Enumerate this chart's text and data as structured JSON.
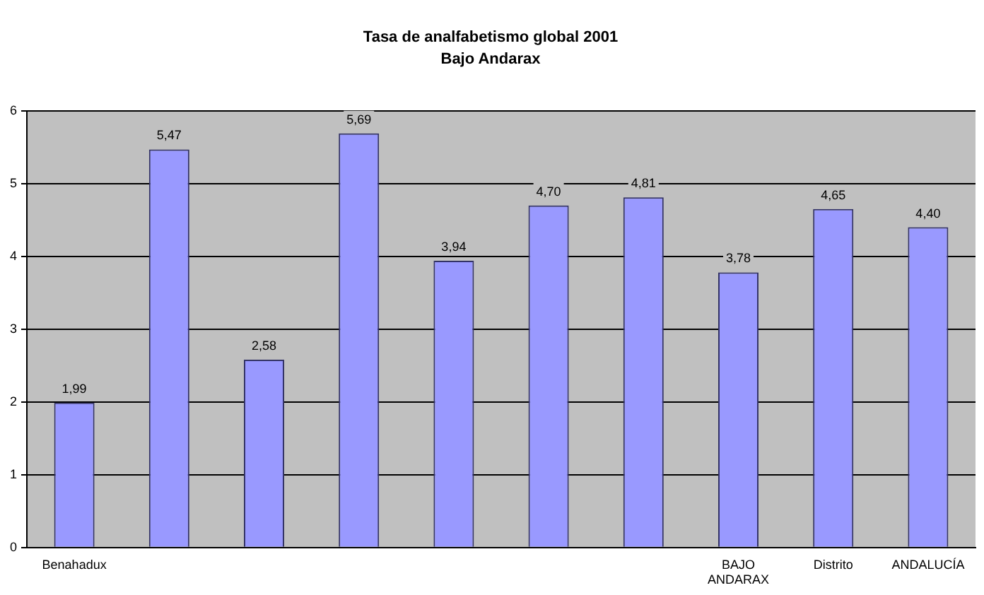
{
  "chart_data": {
    "type": "bar",
    "title": "Tasa de analfabetismo global 2001",
    "subtitle": "Bajo Andarax",
    "categories": [
      "Benahadux",
      null,
      null,
      null,
      null,
      null,
      null,
      "BAJO ANDARAX",
      "Distrito",
      "ANDALUCÍA"
    ],
    "values": [
      1.99,
      5.47,
      2.58,
      5.69,
      3.94,
      4.7,
      4.81,
      3.78,
      4.65,
      4.4
    ],
    "value_labels": [
      "1,99",
      "5,47",
      "2,58",
      "5,69",
      "3,94",
      "4,70",
      "4,81",
      "3,78",
      "4,65",
      "4,40"
    ],
    "color": "#9999ff",
    "ylim": [
      0,
      6
    ],
    "yticks": [
      0,
      1,
      2,
      3,
      4,
      5,
      6
    ],
    "grid": "y",
    "legend": false
  }
}
